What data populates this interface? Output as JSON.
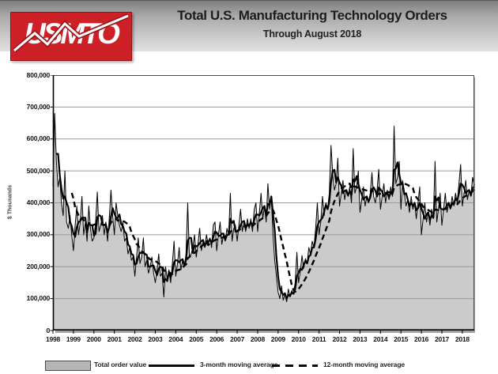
{
  "header": {
    "logo_text": "USMTO",
    "title": "Total U.S. Manufacturing Technology Orders",
    "subtitle": "Through August 2018"
  },
  "chart": {
    "y_axis_title": "$ Thousands",
    "y_tick_labels": [
      "800,000",
      "700,000",
      "600,000",
      "500,000",
      "400,000",
      "300,000",
      "200,000",
      "100,000",
      "0"
    ],
    "x_tick_labels": [
      "1998",
      "1999",
      "2000",
      "2001",
      "2002",
      "2003",
      "2004",
      "2005",
      "2006",
      "2007",
      "2008",
      "2009",
      "2010",
      "2011",
      "2012",
      "2013",
      "2014",
      "2015",
      "2016",
      "2017",
      "2018"
    ]
  },
  "legend": {
    "items": [
      {
        "label": "Total order value",
        "style": "gray-area-swatch"
      },
      {
        "label": "3-month moving average",
        "style": "solid-line"
      },
      {
        "label": "12-month moving average",
        "style": "dashed-line"
      }
    ]
  },
  "colors": {
    "logo_red": "#ce2127",
    "area_fill": "#cbcbcb",
    "line_black": "#000000",
    "grid_gray": "#999999",
    "header_gradient_top": "#7f7f7f",
    "header_gradient_bottom": "#e2e2e2"
  },
  "chart_data": {
    "type": "area",
    "title": "Total U.S. Manufacturing Technology Orders",
    "subtitle": "Through August 2018",
    "ylabel": "$ Thousands",
    "ylim": [
      0,
      800000
    ],
    "y_tick_interval": 100000,
    "x_start": "1998-01",
    "x_end": "2018-08",
    "grid": true,
    "legend_position": "bottom",
    "series": [
      {
        "name": "Total order value",
        "render": "gray area with thin black outline",
        "source": "monthly_orders_usd_millions"
      },
      {
        "name": "3-month moving average",
        "render": "solid black line",
        "derived": "3-month trailing mean of monthly orders"
      },
      {
        "name": "12-month moving average",
        "render": "dashed black line",
        "derived": "12-month trailing mean of monthly orders"
      }
    ],
    "unit_note": "values below are USD millions; axis shows $ thousands (x1000)",
    "monthly_orders_usd_millions": {
      "1998": [
        450,
        680,
        530,
        450,
        480,
        400,
        360,
        500,
        340,
        320,
        360,
        300
      ],
      "1999": [
        250,
        330,
        390,
        300,
        340,
        420,
        300,
        340,
        280,
        390,
        320,
        280
      ],
      "2000": [
        290,
        340,
        434,
        310,
        330,
        360,
        300,
        340,
        280,
        350,
        440,
        360
      ],
      "2001": [
        300,
        400,
        360,
        330,
        310,
        340,
        280,
        290,
        240,
        260,
        220,
        230
      ],
      "2002": [
        170,
        230,
        290,
        210,
        230,
        290,
        200,
        220,
        180,
        200,
        230,
        180
      ],
      "2003": [
        150,
        190,
        240,
        170,
        180,
        105,
        200,
        160,
        190,
        150,
        210,
        280
      ],
      "2004": [
        170,
        210,
        260,
        190,
        220,
        200,
        240,
        400,
        230,
        240,
        260,
        300
      ],
      "2005": [
        230,
        270,
        320,
        250,
        280,
        260,
        300,
        270,
        290,
        260,
        330,
        340
      ],
      "2006": [
        250,
        300,
        340,
        270,
        300,
        280,
        320,
        300,
        430,
        280,
        320,
        330
      ],
      "2007": [
        280,
        330,
        380,
        310,
        340,
        310,
        350,
        320,
        350,
        310,
        380,
        400
      ],
      "2008": [
        310,
        370,
        430,
        350,
        390,
        340,
        460,
        380,
        420,
        300,
        220,
        170
      ],
      "2009": [
        120,
        100,
        140,
        95,
        115,
        90,
        130,
        105,
        125,
        115,
        150,
        245
      ],
      "2010": [
        150,
        185,
        235,
        195,
        225,
        210,
        260,
        240,
        280,
        260,
        320,
        400
      ],
      "2011": [
        300,
        340,
        420,
        360,
        400,
        380,
        430,
        580,
        490,
        440,
        460,
        540
      ],
      "2012": [
        390,
        430,
        470,
        410,
        440,
        420,
        450,
        400,
        570,
        430,
        450,
        500
      ],
      "2013": [
        370,
        410,
        450,
        390,
        420,
        400,
        430,
        495,
        420,
        400,
        440,
        505
      ],
      "2014": [
        380,
        420,
        460,
        400,
        440,
        410,
        450,
        420,
        640,
        460,
        480,
        530
      ],
      "2015": [
        380,
        470,
        430,
        390,
        410,
        370,
        420,
        380,
        400,
        350,
        400,
        450
      ],
      "2016": [
        300,
        350,
        400,
        340,
        370,
        330,
        380,
        350,
        530,
        340,
        380,
        430
      ],
      "2017": [
        330,
        380,
        430,
        370,
        400,
        380,
        420,
        390,
        430,
        400,
        460,
        520
      ],
      "2018": [
        390,
        430,
        470,
        410,
        440,
        420,
        480,
        455
      ]
    }
  }
}
